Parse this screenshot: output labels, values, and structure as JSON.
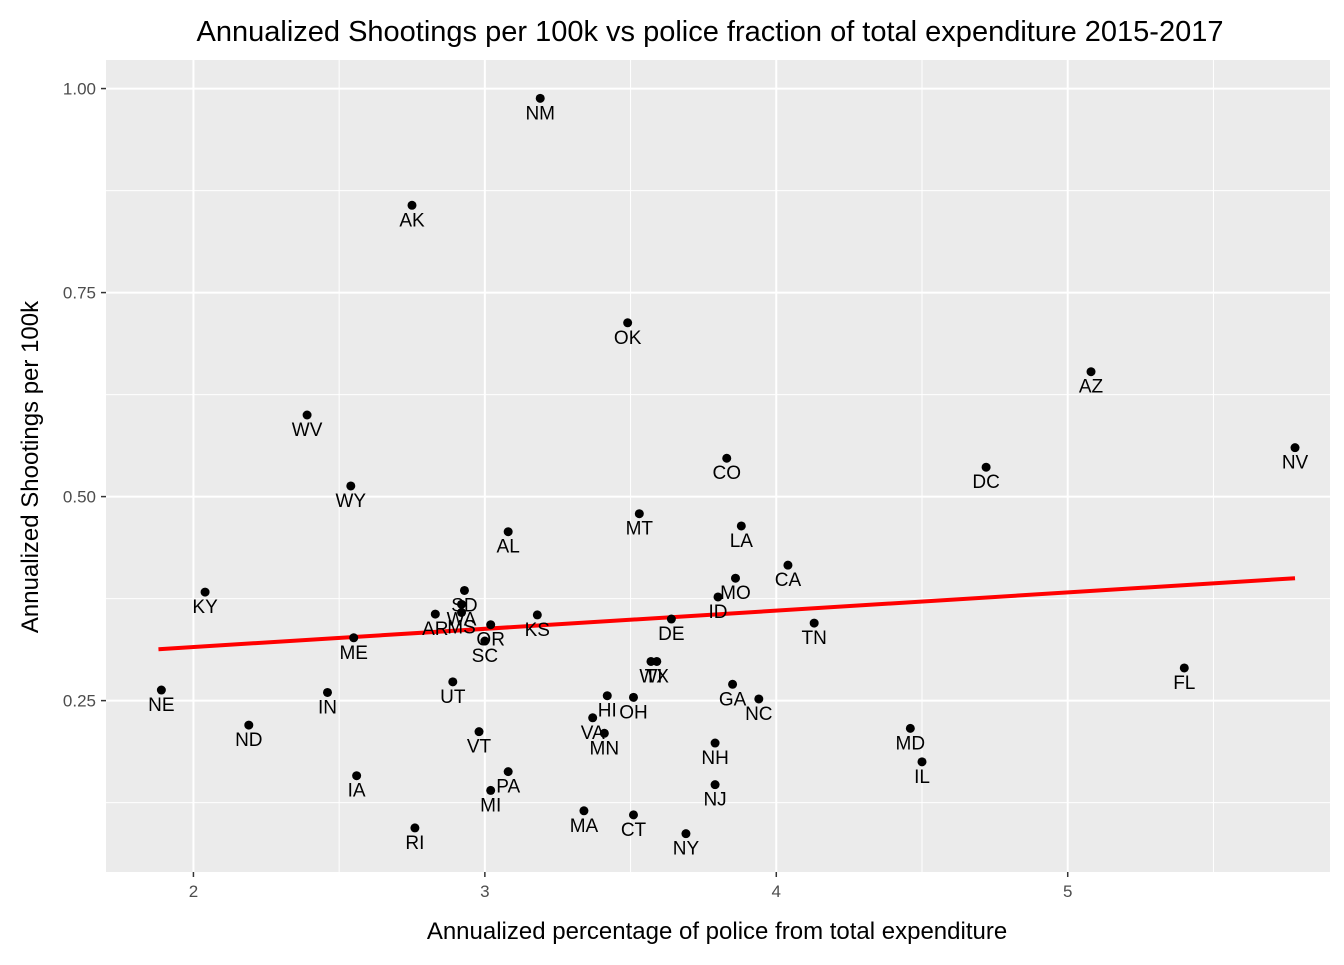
{
  "chart_data": {
    "type": "scatter",
    "title": "Annualized Shootings per 100k vs police fraction of total expenditure 2015-2017",
    "xlabel": "Annualized percentage of police from total expenditure",
    "ylabel": "Annualized Shootings per 100k",
    "xlim": [
      1.7,
      5.9
    ],
    "ylim": [
      0.04,
      1.035
    ],
    "x_ticks": [
      2,
      3,
      4,
      5
    ],
    "x_tick_labels": [
      "2",
      "3",
      "4",
      "5"
    ],
    "y_ticks": [
      0.25,
      0.5,
      0.75,
      1.0
    ],
    "y_tick_labels": [
      "0.25",
      "0.50",
      "0.75",
      "1.00"
    ],
    "grid": true,
    "background": "#ebebeb",
    "point_color": "#000000",
    "fit_line": {
      "color": "#ff0000",
      "x": [
        1.88,
        5.78
      ],
      "y": [
        0.313,
        0.4
      ]
    },
    "points": [
      {
        "label": "NM",
        "x": 3.19,
        "y": 0.988
      },
      {
        "label": "AK",
        "x": 2.75,
        "y": 0.857
      },
      {
        "label": "OK",
        "x": 3.49,
        "y": 0.713
      },
      {
        "label": "AZ",
        "x": 5.08,
        "y": 0.653
      },
      {
        "label": "WV",
        "x": 2.39,
        "y": 0.6
      },
      {
        "label": "NV",
        "x": 5.78,
        "y": 0.56
      },
      {
        "label": "CO",
        "x": 3.83,
        "y": 0.547
      },
      {
        "label": "DC",
        "x": 4.72,
        "y": 0.536
      },
      {
        "label": "WY",
        "x": 2.54,
        "y": 0.513
      },
      {
        "label": "MT",
        "x": 3.53,
        "y": 0.479
      },
      {
        "label": "LA",
        "x": 3.88,
        "y": 0.464
      },
      {
        "label": "AL",
        "x": 3.08,
        "y": 0.457
      },
      {
        "label": "CA",
        "x": 4.04,
        "y": 0.416
      },
      {
        "label": "MO",
        "x": 3.86,
        "y": 0.4
      },
      {
        "label": "KY",
        "x": 2.04,
        "y": 0.383
      },
      {
        "label": "SD",
        "x": 2.93,
        "y": 0.385
      },
      {
        "label": "ID",
        "x": 3.8,
        "y": 0.377
      },
      {
        "label": "WA",
        "x": 2.92,
        "y": 0.368
      },
      {
        "label": "MS",
        "x": 2.92,
        "y": 0.358
      },
      {
        "label": "AR",
        "x": 2.83,
        "y": 0.356
      },
      {
        "label": "KS",
        "x": 3.18,
        "y": 0.355
      },
      {
        "label": "DE",
        "x": 3.64,
        "y": 0.35
      },
      {
        "label": "TN",
        "x": 4.13,
        "y": 0.345
      },
      {
        "label": "OR",
        "x": 3.02,
        "y": 0.343
      },
      {
        "label": "ME",
        "x": 2.55,
        "y": 0.327
      },
      {
        "label": "SC",
        "x": 3.0,
        "y": 0.323
      },
      {
        "label": "WI",
        "x": 3.57,
        "y": 0.298
      },
      {
        "label": "TX",
        "x": 3.59,
        "y": 0.298
      },
      {
        "label": "FL",
        "x": 5.4,
        "y": 0.29
      },
      {
        "label": "UT",
        "x": 2.89,
        "y": 0.273
      },
      {
        "label": "GA",
        "x": 3.85,
        "y": 0.27
      },
      {
        "label": "NE",
        "x": 1.89,
        "y": 0.263
      },
      {
        "label": "IN",
        "x": 2.46,
        "y": 0.26
      },
      {
        "label": "HI",
        "x": 3.42,
        "y": 0.256
      },
      {
        "label": "OH",
        "x": 3.51,
        "y": 0.254
      },
      {
        "label": "NC",
        "x": 3.94,
        "y": 0.252
      },
      {
        "label": "VA",
        "x": 3.37,
        "y": 0.229
      },
      {
        "label": "ND",
        "x": 2.19,
        "y": 0.22
      },
      {
        "label": "MD",
        "x": 4.46,
        "y": 0.216
      },
      {
        "label": "VT",
        "x": 2.98,
        "y": 0.212
      },
      {
        "label": "MN",
        "x": 3.41,
        "y": 0.21
      },
      {
        "label": "NH",
        "x": 3.79,
        "y": 0.198
      },
      {
        "label": "IL",
        "x": 4.5,
        "y": 0.175
      },
      {
        "label": "PA",
        "x": 3.08,
        "y": 0.163
      },
      {
        "label": "IA",
        "x": 2.56,
        "y": 0.158
      },
      {
        "label": "NJ",
        "x": 3.79,
        "y": 0.147
      },
      {
        "label": "MI",
        "x": 3.02,
        "y": 0.14
      },
      {
        "label": "MA",
        "x": 3.34,
        "y": 0.115
      },
      {
        "label": "CT",
        "x": 3.51,
        "y": 0.11
      },
      {
        "label": "RI",
        "x": 2.76,
        "y": 0.094
      },
      {
        "label": "NY",
        "x": 3.69,
        "y": 0.087
      }
    ]
  }
}
